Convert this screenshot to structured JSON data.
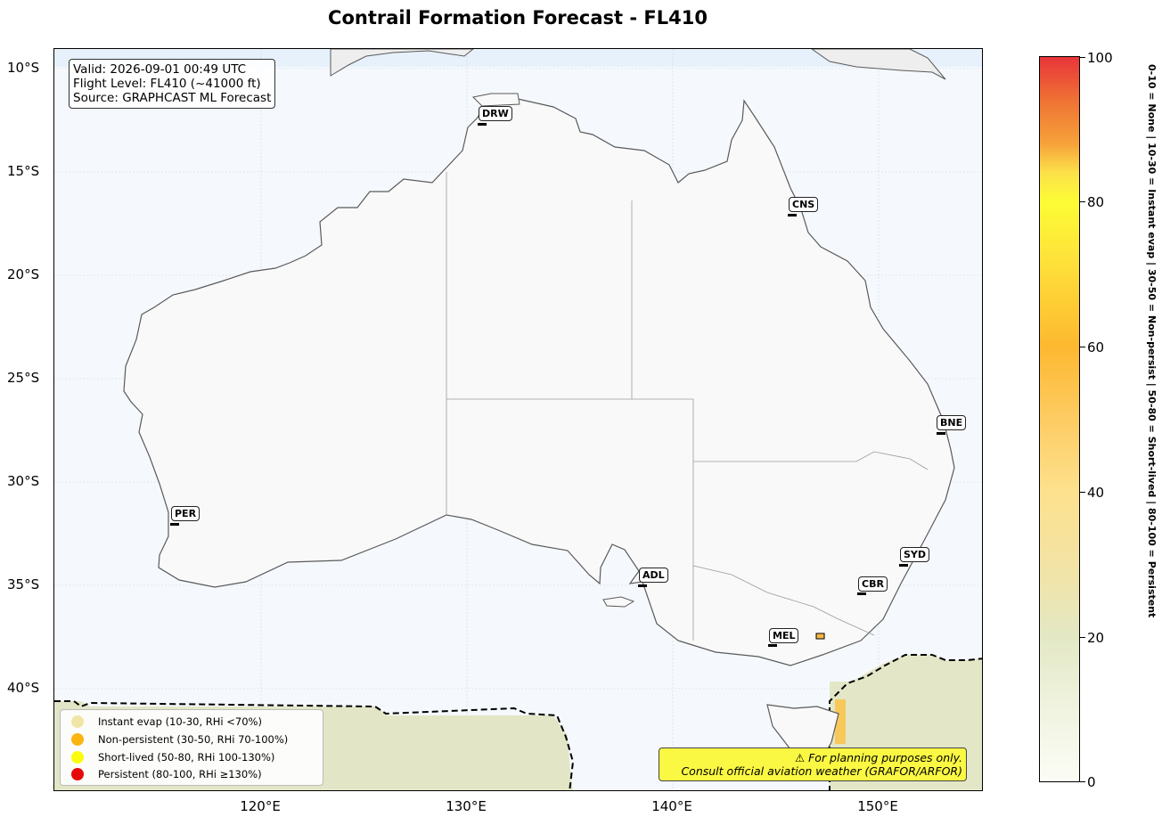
{
  "title": "Contrail Formation Forecast - FL410",
  "info": {
    "valid": "Valid: 2026-09-01 00:49 UTC",
    "flight_level": "Flight Level: FL410 (~41000 ft)",
    "source": "Source: GRAPHCAST ML Forecast"
  },
  "axes": {
    "lat_ticks": [
      "10°S",
      "15°S",
      "20°S",
      "25°S",
      "30°S",
      "35°S",
      "40°S"
    ],
    "lon_ticks": [
      "120°E",
      "130°E",
      "140°E",
      "150°E"
    ]
  },
  "cities": [
    {
      "code": "DRW"
    },
    {
      "code": "CNS"
    },
    {
      "code": "BNE"
    },
    {
      "code": "PER"
    },
    {
      "code": "SYD"
    },
    {
      "code": "ADL"
    },
    {
      "code": "CBR"
    },
    {
      "code": "MEL"
    }
  ],
  "legend": {
    "items": [
      {
        "label": "Instant evap (10-30, RHi <70%)",
        "color": "#efe5a5"
      },
      {
        "label": "Non-persistent (30-50, RHi 70-100%)",
        "color": "#fbb511"
      },
      {
        "label": "Short-lived (50-80, RHi 100-130%)",
        "color": "#fbfb0e"
      },
      {
        "label": "Persistent (80-100, RHi ≥130%)",
        "color": "#e60808"
      }
    ]
  },
  "warning": {
    "line1": "⚠ For planning purposes only.",
    "line2": "Consult official aviation weather (GRAFOR/ARFOR)"
  },
  "colorbar": {
    "ticks": [
      "0",
      "20",
      "40",
      "60",
      "80",
      "100"
    ],
    "caption": "0-10 = None  |  10-30 = Instant evap  |  30-50 = Non-persist  |  50-80 = Short-lived  |  80-100 = Persistent"
  },
  "colors": {
    "ocean": "#f5f9fd",
    "land": "#f9f9f9",
    "coast": "#5a5a5a",
    "contrail_field": "#e2e6c6",
    "warning_bg": "#fbf843"
  }
}
